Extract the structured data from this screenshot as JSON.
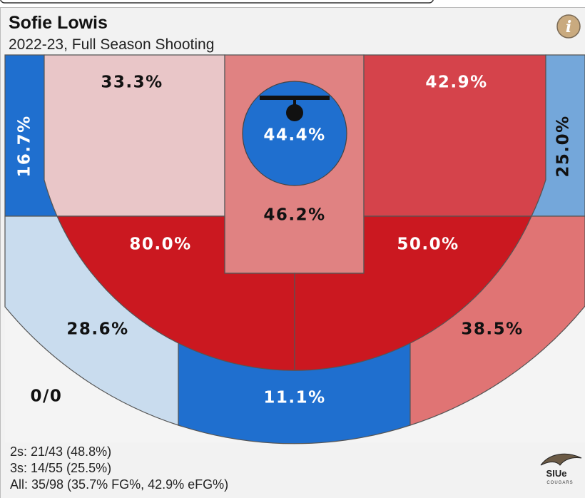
{
  "header": {
    "title": "Sofie Lowis",
    "subtitle": "2022-23, Full Season Shooting"
  },
  "zones": [
    {
      "label": "0/0",
      "color": "#f4f4f4"
    },
    {
      "label": "16.7%",
      "color": "#1f6fcf"
    },
    {
      "label": "33.3%",
      "color": "#e9c6c8"
    },
    {
      "label": "46.2%",
      "color": "#e08282"
    },
    {
      "label": "44.4%",
      "color": "#1f6fcf"
    },
    {
      "label": "42.9%",
      "color": "#d5434b"
    },
    {
      "label": "25.0%",
      "color": "#74a7da"
    },
    {
      "label": "80.0%",
      "color": "#cb1820"
    },
    {
      "label": "50.0%",
      "color": "#cb1820"
    },
    {
      "label": "28.6%",
      "color": "#c9dcee"
    },
    {
      "label": "11.1%",
      "color": "#1f6fcf"
    },
    {
      "label": "38.5%",
      "color": "#e07474"
    }
  ],
  "stats": [
    "2s: 21/43 (48.8%)",
    "3s: 14/55 (25.5%)",
    "All: 35/98 (35.7% FG%, 42.9% eFG%)"
  ],
  "logo": {
    "text": "SIUe",
    "subtext": "COUGARS"
  }
}
